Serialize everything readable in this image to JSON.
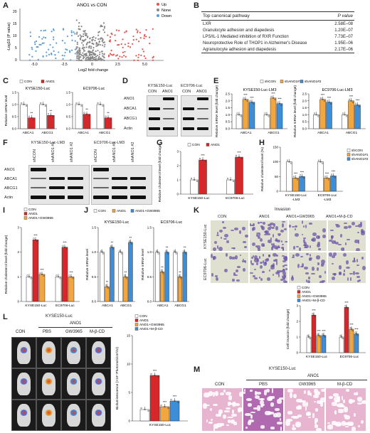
{
  "panels": {
    "A": "A",
    "B": "B",
    "C": "C",
    "D": "D",
    "E": "E",
    "F": "F",
    "G": "G",
    "H": "H",
    "I": "I",
    "J": "J",
    "K": "K",
    "L": "L",
    "M": "M"
  },
  "panelA": {
    "title": "ANO1 vs CON",
    "legend": [
      "Up",
      "None",
      "Down"
    ],
    "ylabel": "-Log10 (P value)",
    "xlabel": "Log2 fold change",
    "xticks": [
      "-5.0",
      "-2.5",
      "0",
      "2.5",
      "5.0"
    ],
    "yticks": [
      "0",
      "5",
      "10",
      "15",
      "20"
    ],
    "colors": {
      "up": "#e0564c",
      "none": "#888888",
      "down": "#5a9bd4"
    }
  },
  "panelB": {
    "header": [
      "Top canonical pathway",
      "P value"
    ],
    "rows": [
      [
        "LXR",
        "2.58E–08"
      ],
      [
        "Granulocyte adhesion and diapedesis",
        "1.20E–07"
      ],
      [
        "LPS/IL-1 Mediated inhibition of RXR Function",
        "7.73E–07"
      ],
      [
        "Neuroprotective Role of THOP1 in Alzheimer's Disease",
        "1.95E–06"
      ],
      [
        "Agranulocyte adhesion and diapedesis",
        "2.17E–06"
      ]
    ]
  },
  "panelC": {
    "legend": [
      "CON",
      "ANO1"
    ],
    "ylabel": "Relative mRNA level",
    "sub1": "KYSE150-Luc",
    "sub2": "EC9706-Luc",
    "cats": [
      "ABCA1",
      "ABCG1"
    ],
    "yticks": [
      "0.0",
      "0.5",
      "1.0",
      "1.5"
    ]
  },
  "panelD": {
    "lines": [
      "KYSE150-Luc",
      "EC9706-Luc"
    ],
    "lanes": [
      "CON",
      "ANO1",
      "CON",
      "ANO1"
    ],
    "rows": [
      "ANO1",
      "ABCA1",
      "ABCG1",
      "Actin"
    ]
  },
  "panelE": {
    "legend": [
      "shCON",
      "shANO1#1",
      "shANO1#2"
    ],
    "sub1": "KYSE150-Luc-LM3",
    "sub2": "EC9706-Luc-LM3",
    "ylabel": "Relative mRNA level (fold change)",
    "cats": [
      "ABCA1",
      "ABCG1"
    ],
    "yticks": [
      "0.0",
      "0.5",
      "1.0",
      "1.5",
      "2.0",
      "2.5"
    ]
  },
  "panelF": {
    "lines": [
      "KYSE150-Luc-LM3",
      "EC9706-Luc-LM3"
    ],
    "lanes": [
      "shCON",
      "shANO1 #1",
      "shANO1 #2",
      "shCON",
      "shANO1 #1",
      "shANO1 #2"
    ],
    "rows": [
      "ANO1",
      "ABCA1",
      "ABCG1",
      "Actin"
    ]
  },
  "panelG": {
    "legend": [
      "CON",
      "ANO1"
    ],
    "ylabel": "Relative cholesterol level (fold change)",
    "cats": [
      "KYSE150-Luc",
      "EC9706-Luc"
    ],
    "yticks": [
      "0",
      "1",
      "2",
      "3"
    ]
  },
  "panelH": {
    "legend": [
      "shCON",
      "shANO1#1",
      "shANO1#2"
    ],
    "ylabel": "Relative cholesterol level (%)",
    "cats": [
      "KYSE150-Luc -LM3",
      "EC9706-Luc -LM3"
    ],
    "yticks": [
      "0",
      "50",
      "100",
      "150"
    ]
  },
  "panelI": {
    "legend": [
      "CON",
      "ANO1",
      "ANO1+GW3965"
    ],
    "ylabel": "Relative cholesterol level (fold change)",
    "cats": [
      "KYSE150-Luc",
      "EC9706-Luc"
    ],
    "yticks": [
      "0",
      "1",
      "2",
      "3"
    ]
  },
  "panelJ": {
    "legend": [
      "CON",
      "ANO1",
      "ANO1+GW3965"
    ],
    "sub1": "KYSE150-Luc",
    "sub2": "EC9706-Luc",
    "ylabel": "Relative mRNA level",
    "cats": [
      "ABCA1",
      "ABCG1"
    ],
    "yticks": [
      "0.0",
      "0.5",
      "1.0",
      "1.5"
    ]
  },
  "panelK": {
    "title": "Invasion",
    "cols": [
      "CON",
      "ANO1",
      "ANO1+GW3965",
      "ANO1+M-β-CD"
    ],
    "rows": [
      "KYSE150-Luc",
      "EC9706-Luc"
    ],
    "legend": [
      "CON",
      "ANO1",
      "ANO1+GW3965",
      "ANO1+M-β-CD"
    ],
    "ylabel": "Cell invasion (fold change)",
    "cats": [
      "KYSE150-Luc",
      "EC9706-Luc"
    ],
    "yticks": [
      "0",
      "1",
      "2",
      "3"
    ]
  },
  "panelL": {
    "title": "KYSE150-Luc",
    "group": "ANO1",
    "cols": [
      "CON",
      "PBS",
      "GW3965",
      "M-β-CD"
    ],
    "legend": [
      "CON",
      "ANO1",
      "ANO1+GW3965",
      "ANO1+M-β-CD"
    ],
    "ylabel": "Bioluminescence (×10⁷ Photons/s/cm²/sr)",
    "xlabel": "KYSE150-Luc",
    "yticks": [
      "0",
      "5",
      "10",
      "15"
    ]
  },
  "panelM": {
    "title": "KYSE150-Luc",
    "group": "ANO1",
    "cols": [
      "CON",
      "PBS",
      "GW3965",
      "M-β-CD"
    ]
  },
  "chart_data": [
    {
      "panel": "C",
      "type": "bar",
      "subtitle": "KYSE150-Luc",
      "categories": [
        "ABCA1",
        "ABCG1"
      ],
      "ylim": [
        0,
        1.5
      ],
      "series": [
        {
          "name": "CON",
          "values": [
            1.0,
            1.0
          ]
        },
        {
          "name": "ANO1",
          "values": [
            0.45,
            0.55
          ]
        }
      ]
    },
    {
      "panel": "C",
      "type": "bar",
      "subtitle": "EC9706-Luc",
      "categories": [
        "ABCA1",
        "ABCG1"
      ],
      "ylim": [
        0,
        1.5
      ],
      "series": [
        {
          "name": "CON",
          "values": [
            1.0,
            1.0
          ]
        },
        {
          "name": "ANO1",
          "values": [
            0.6,
            0.45
          ]
        }
      ]
    },
    {
      "panel": "E",
      "type": "bar",
      "subtitle": "KYSE150-Luc-LM3",
      "categories": [
        "ABCA1",
        "ABCG1"
      ],
      "ylim": [
        0,
        2.5
      ],
      "series": [
        {
          "name": "shCON",
          "values": [
            1.0,
            1.0
          ]
        },
        {
          "name": "shANO1#1",
          "values": [
            2.1,
            2.2
          ]
        },
        {
          "name": "shANO1#2",
          "values": [
            1.9,
            1.8
          ]
        }
      ]
    },
    {
      "panel": "E",
      "type": "bar",
      "subtitle": "EC9706-Luc-LM3",
      "categories": [
        "ABCA1",
        "ABCG1"
      ],
      "ylim": [
        0,
        2.5
      ],
      "series": [
        {
          "name": "shCON",
          "values": [
            1.0,
            1.0
          ]
        },
        {
          "name": "shANO1#1",
          "values": [
            2.1,
            2.0
          ]
        },
        {
          "name": "shANO1#2",
          "values": [
            1.9,
            1.7
          ]
        }
      ]
    },
    {
      "panel": "G",
      "type": "bar",
      "categories": [
        "KYSE150-Luc",
        "EC9706-Luc"
      ],
      "ylim": [
        0,
        3
      ],
      "series": [
        {
          "name": "CON",
          "values": [
            1.0,
            1.0
          ]
        },
        {
          "name": "ANO1",
          "values": [
            2.4,
            2.6
          ]
        }
      ]
    },
    {
      "panel": "H",
      "type": "bar",
      "categories": [
        "KYSE150-Luc -LM3",
        "EC9706-Luc -LM3"
      ],
      "ylim": [
        0,
        150
      ],
      "series": [
        {
          "name": "shCON",
          "values": [
            100,
            100
          ]
        },
        {
          "name": "shANO1#1",
          "values": [
            45,
            45
          ]
        },
        {
          "name": "shANO1#2",
          "values": [
            50,
            52
          ]
        }
      ]
    },
    {
      "panel": "I",
      "type": "bar",
      "categories": [
        "KYSE150-Luc",
        "EC9706-Luc"
      ],
      "ylim": [
        0,
        3
      ],
      "series": [
        {
          "name": "CON",
          "values": [
            1.0,
            1.0
          ]
        },
        {
          "name": "ANO1",
          "values": [
            2.5,
            2.2
          ]
        },
        {
          "name": "ANO1+GW3965",
          "values": [
            1.1,
            1.0
          ]
        }
      ]
    },
    {
      "panel": "J",
      "type": "bar",
      "subtitle": "KYSE150-Luc",
      "categories": [
        "ABCA1",
        "ABCG1"
      ],
      "ylim": [
        0,
        1.5
      ],
      "series": [
        {
          "name": "CON",
          "values": [
            1.0,
            1.0
          ]
        },
        {
          "name": "ANO1",
          "values": [
            0.3,
            0.5
          ]
        },
        {
          "name": "ANO1+GW3965",
          "values": [
            1.1,
            1.2
          ]
        }
      ]
    },
    {
      "panel": "J",
      "type": "bar",
      "subtitle": "EC9706-Luc",
      "categories": [
        "ABCA1",
        "ABCG1"
      ],
      "ylim": [
        0,
        1.5
      ],
      "series": [
        {
          "name": "CON",
          "values": [
            1.0,
            1.0
          ]
        },
        {
          "name": "ANO1",
          "values": [
            0.6,
            0.5
          ]
        },
        {
          "name": "ANO1+GW3965",
          "values": [
            1.0,
            1.0
          ]
        }
      ]
    },
    {
      "panel": "K",
      "type": "bar",
      "categories": [
        "KYSE150-Luc",
        "EC9706-Luc"
      ],
      "ylim": [
        0,
        3
      ],
      "series": [
        {
          "name": "CON",
          "values": [
            1.0,
            1.0
          ]
        },
        {
          "name": "ANO1",
          "values": [
            2.4,
            2.9
          ]
        },
        {
          "name": "ANO1+GW3965",
          "values": [
            1.1,
            1.5
          ]
        },
        {
          "name": "ANO1+M-β-CD",
          "values": [
            1.1,
            1.2
          ]
        }
      ]
    },
    {
      "panel": "L",
      "type": "bar",
      "categories": [
        "KYSE150-Luc"
      ],
      "ylim": [
        0,
        15
      ],
      "series": [
        {
          "name": "CON",
          "values": [
            2.0
          ]
        },
        {
          "name": "ANO1",
          "values": [
            8.0
          ]
        },
        {
          "name": "ANO1+GW3965",
          "values": [
            2.5
          ]
        },
        {
          "name": "ANO1+M-β-CD",
          "values": [
            3.5
          ]
        }
      ]
    }
  ]
}
